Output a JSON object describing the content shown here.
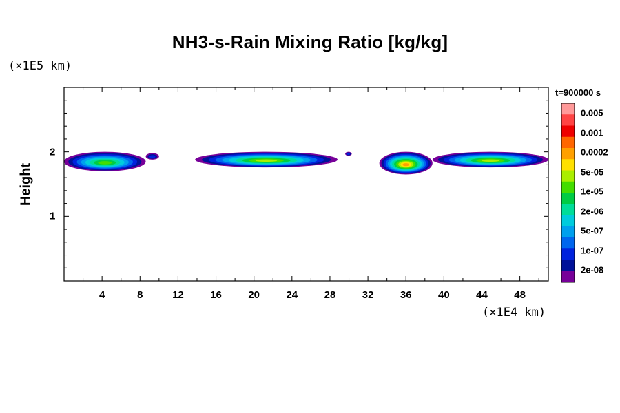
{
  "chart_data": {
    "type": "heatmap",
    "title": "NH3-s-Rain Mixing Ratio [kg/kg]",
    "ylabel": "Height",
    "xlabel": "",
    "x_unit": "(×1E4 km)",
    "y_unit": "(×1E5 km)",
    "x_ticks": [
      "4",
      "8",
      "12",
      "16",
      "20",
      "24",
      "28",
      "32",
      "36",
      "40",
      "44",
      "48"
    ],
    "y_ticks": [
      "1",
      "2"
    ],
    "xlim": [
      0,
      51
    ],
    "ylim": [
      0,
      3
    ],
    "time_label": "t=900000 s",
    "colorbar": {
      "labels": [
        "0.005",
        "0.001",
        "0.0002",
        "5e-05",
        "1e-05",
        "2e-06",
        "5e-07",
        "1e-07",
        "2e-08"
      ],
      "colors": [
        "#ff9999",
        "#ff4444",
        "#ee0000",
        "#ff6600",
        "#ffa000",
        "#ffe000",
        "#aaee00",
        "#44dd00",
        "#00cc44",
        "#00dd99",
        "#00ccdd",
        "#00a0ee",
        "#0066ee",
        "#0022dd",
        "#001199",
        "#770099"
      ]
    },
    "regions": [
      {
        "x_start": 0.0,
        "x_end": 8.6,
        "y_bottom": 1.7,
        "y_top": 2.0,
        "peak_color": "#44dd00"
      },
      {
        "x_start": 8.6,
        "x_end": 10.0,
        "y_bottom": 1.88,
        "y_top": 1.98,
        "peak_color": "#0022dd"
      },
      {
        "x_start": 13.8,
        "x_end": 28.8,
        "y_bottom": 1.76,
        "y_top": 2.0,
        "peak_color": "#aaee00"
      },
      {
        "x_start": 29.6,
        "x_end": 30.3,
        "y_bottom": 1.94,
        "y_top": 2.0,
        "peak_color": "#0022dd"
      },
      {
        "x_start": 33.2,
        "x_end": 38.8,
        "y_bottom": 1.65,
        "y_top": 2.0,
        "peak_color": "#ffa000"
      },
      {
        "x_start": 38.8,
        "x_end": 51.0,
        "y_bottom": 1.76,
        "y_top": 2.0,
        "peak_color": "#aaee00"
      }
    ]
  }
}
